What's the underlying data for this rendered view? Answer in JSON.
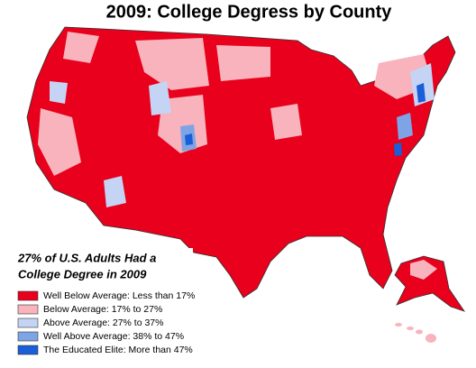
{
  "title": "2009: College Degress by County",
  "note": [
    "27% of U.S. Adults Had a",
    "College Degree in 2009"
  ],
  "legend": [
    {
      "label": "Well Below Average: Less than 17%",
      "color": "#e8001c"
    },
    {
      "label": "Below Average: 17% to 27%",
      "color": "#f8b3bc"
    },
    {
      "label": "Above Average: 27% to 37%",
      "color": "#c5d4f4"
    },
    {
      "label": "Well Above Average: 38% to 47%",
      "color": "#7ea4e6"
    },
    {
      "label": "The Educated Elite: More than 47%",
      "color": "#1a5ed8"
    }
  ]
}
